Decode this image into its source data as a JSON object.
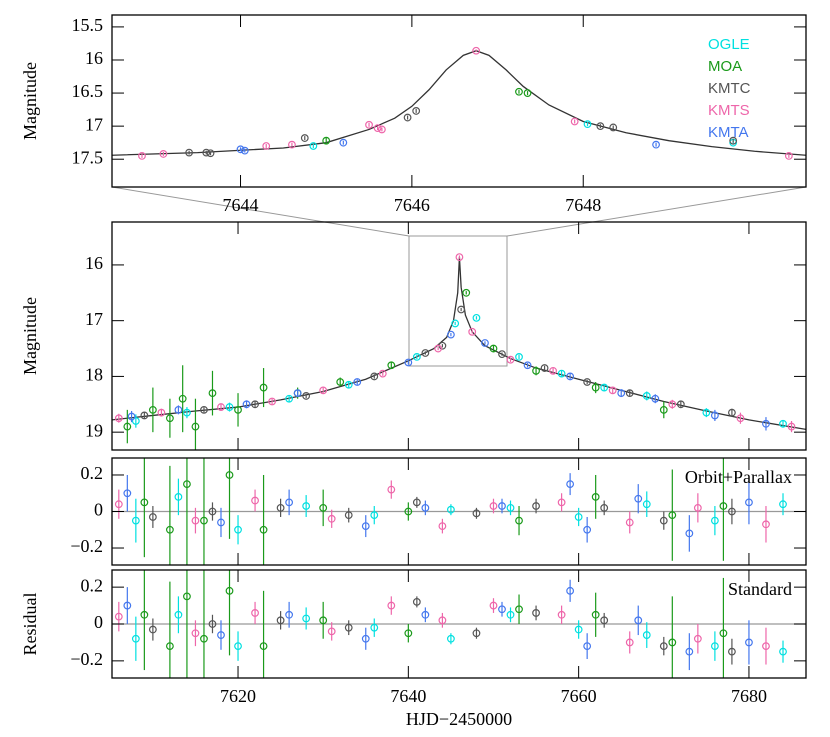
{
  "chart_data": [
    {
      "type": "scatter",
      "ylabel": "Magnitude",
      "xlim": [
        7642.5,
        7650.6
      ],
      "xticks": [
        7644,
        7646,
        7648
      ],
      "ylim": [
        17.92,
        15.32
      ],
      "yticks": [
        15.5,
        16,
        16.5,
        17,
        17.5
      ],
      "legend": "upper right",
      "model": {
        "color": "#333333",
        "x": [
          7642.5,
          7643.5,
          7644.5,
          7645,
          7645.5,
          7645.8,
          7646,
          7646.2,
          7646.4,
          7646.6,
          7646.75,
          7646.9,
          7647.1,
          7647.3,
          7647.6,
          7648,
          7648.5,
          7649,
          7649.5,
          7650,
          7650.6
        ],
        "values": [
          17.44,
          17.4,
          17.33,
          17.25,
          17.05,
          16.88,
          16.7,
          16.45,
          16.15,
          15.93,
          15.86,
          15.93,
          16.15,
          16.4,
          16.68,
          16.93,
          17.1,
          17.22,
          17.31,
          17.38,
          17.44
        ]
      },
      "series": [
        {
          "name": "OGLE",
          "color": "#00e0e0",
          "x": [
            7644.85,
            7648.05,
            7649.75
          ],
          "values": [
            17.3,
            16.97,
            17.25
          ],
          "errors": [
            0.03,
            0.03,
            0.03
          ]
        },
        {
          "name": "MOA",
          "color": "#1a9a1a",
          "x": [
            7645.0,
            7647.25,
            7647.35
          ],
          "values": [
            17.22,
            16.48,
            16.5
          ],
          "errors": [
            0.05,
            0.03,
            0.03
          ]
        },
        {
          "name": "KMTC",
          "color": "#555555",
          "x": [
            7643.4,
            7643.6,
            7643.65,
            7644.75,
            7645.95,
            7646.05,
            7648.2,
            7648.35,
            7649.75
          ],
          "values": [
            17.4,
            17.4,
            17.41,
            17.18,
            16.87,
            16.77,
            17.0,
            17.02,
            17.22
          ],
          "errors": [
            0.03,
            0.03,
            0.03,
            0.03,
            0.03,
            0.03,
            0.03,
            0.03,
            0.03
          ]
        },
        {
          "name": "KMTS",
          "color": "#ee66aa",
          "x": [
            7642.85,
            7643.1,
            7644.3,
            7644.6,
            7645.5,
            7645.6,
            7645.65,
            7646.75,
            7647.9,
            7650.4
          ],
          "values": [
            17.45,
            17.42,
            17.3,
            17.28,
            16.98,
            17.03,
            17.05,
            15.86,
            16.93,
            17.45
          ],
          "errors": [
            0.03,
            0.03,
            0.03,
            0.03,
            0.03,
            0.03,
            0.03,
            0.02,
            0.03,
            0.03
          ]
        },
        {
          "name": "KMTA",
          "color": "#4477ee",
          "x": [
            7644.0,
            7644.05,
            7645.2,
            7648.85
          ],
          "values": [
            17.35,
            17.37,
            17.25,
            17.28
          ],
          "errors": [
            0.03,
            0.03,
            0.03,
            0.03
          ]
        }
      ]
    },
    {
      "type": "scatter",
      "ylabel": "Magnitude",
      "xlim": [
        7605.2,
        7686.7
      ],
      "ylim": [
        19.32,
        15.23
      ],
      "yticks": [
        16,
        17,
        18,
        19
      ],
      "model": {
        "color": "#333333",
        "x": [
          7605.2,
          7610,
          7615,
          7620,
          7625,
          7630,
          7635,
          7640,
          7643,
          7644.5,
          7645.3,
          7645.8,
          7646,
          7646.2,
          7646.7,
          7647.5,
          7649,
          7652,
          7655,
          7660,
          7665,
          7670,
          7675,
          7680,
          7686.7
        ],
        "values": [
          18.78,
          18.7,
          18.62,
          18.55,
          18.42,
          18.27,
          18.05,
          17.72,
          17.5,
          17.3,
          17.0,
          16.5,
          15.86,
          16.4,
          16.9,
          17.2,
          17.45,
          17.68,
          17.85,
          18.05,
          18.25,
          18.45,
          18.62,
          18.78,
          18.95
        ]
      },
      "series": [
        {
          "color": "#1a9a1a",
          "x": [
            7607,
            7610,
            7612,
            7613.5,
            7615,
            7617,
            7620,
            7623,
            7627,
            7632,
            7638,
            7646.8,
            7650,
            7655,
            7662,
            7670
          ],
          "values": [
            18.9,
            18.6,
            18.75,
            18.4,
            18.9,
            18.3,
            18.6,
            18.2,
            18.3,
            18.1,
            17.8,
            16.5,
            17.5,
            17.9,
            18.2,
            18.6
          ],
          "errors": [
            0.3,
            0.4,
            0.35,
            0.6,
            0.5,
            0.4,
            0.3,
            0.35,
            0.1,
            0.08,
            0.06,
            0.03,
            0.06,
            0.08,
            0.1,
            0.15
          ]
        },
        {
          "color": "#00e0e0",
          "x": [
            7608,
            7614,
            7619,
            7626,
            7633,
            7641,
            7645.5,
            7648,
            7653,
            7658,
            7663,
            7668,
            7675,
            7684
          ],
          "values": [
            18.8,
            18.65,
            18.55,
            18.4,
            18.15,
            17.65,
            17.05,
            16.95,
            17.65,
            17.95,
            18.2,
            18.35,
            18.65,
            18.85
          ],
          "errors": [
            0.12,
            0.1,
            0.08,
            0.06,
            0.05,
            0.04,
            0.03,
            0.03,
            0.04,
            0.05,
            0.06,
            0.08,
            0.08,
            0.06
          ]
        },
        {
          "color": "#555555",
          "x": [
            7609,
            7616,
            7622,
            7628,
            7636,
            7642,
            7644,
            7646.2,
            7651,
            7656,
            7661,
            7666,
            7672,
            7678
          ],
          "values": [
            18.7,
            18.6,
            18.5,
            18.35,
            18.0,
            17.58,
            17.45,
            16.8,
            17.6,
            17.85,
            18.1,
            18.3,
            18.5,
            18.65
          ],
          "errors": [
            0.06,
            0.05,
            0.05,
            0.04,
            0.04,
            0.03,
            0.03,
            0.03,
            0.03,
            0.04,
            0.04,
            0.05,
            0.06,
            0.07
          ]
        },
        {
          "color": "#ee66aa",
          "x": [
            7606,
            7611,
            7618,
            7624,
            7630,
            7637,
            7643.5,
            7646,
            7647.5,
            7652,
            7657,
            7664,
            7671,
            7679,
            7685
          ],
          "values": [
            18.75,
            18.65,
            18.55,
            18.45,
            18.25,
            17.95,
            17.5,
            15.86,
            17.2,
            17.7,
            17.9,
            18.25,
            18.5,
            18.75,
            18.9
          ],
          "errors": [
            0.08,
            0.07,
            0.06,
            0.05,
            0.05,
            0.04,
            0.03,
            0.03,
            0.03,
            0.04,
            0.05,
            0.06,
            0.08,
            0.1,
            0.1
          ]
        },
        {
          "color": "#4477ee",
          "x": [
            7607.5,
            7613,
            7621,
            7627,
            7634,
            7640,
            7645,
            7649,
            7654,
            7659,
            7665,
            7669,
            7676,
            7682
          ],
          "values": [
            18.72,
            18.6,
            18.5,
            18.3,
            18.1,
            17.75,
            17.25,
            17.4,
            17.8,
            18.0,
            18.3,
            18.4,
            18.7,
            18.85
          ],
          "errors": [
            0.1,
            0.08,
            0.07,
            0.06,
            0.05,
            0.04,
            0.03,
            0.03,
            0.04,
            0.05,
            0.07,
            0.08,
            0.1,
            0.12
          ]
        }
      ]
    },
    {
      "type": "scatter",
      "annotation": "Orbit+Parallax",
      "xlim": [
        7605.2,
        7686.7
      ],
      "ylim": [
        -0.293,
        0.293
      ],
      "yticks": [
        {
          "value": -0.2,
          "label": "−0.2"
        },
        0,
        0.2
      ],
      "reference_line": 0,
      "series": [
        {
          "color": "#1a9a1a",
          "x": [
            7609,
            7612,
            7614,
            7616,
            7619,
            7623,
            7630,
            7640,
            7653,
            7662,
            7671,
            7677
          ],
          "values": [
            0.05,
            -0.1,
            0.15,
            -0.05,
            0.2,
            -0.1,
            0.02,
            0,
            -0.05,
            0.08,
            -0.02,
            0.03
          ],
          "errors": [
            0.3,
            0.35,
            0.5,
            0.4,
            0.35,
            0.3,
            0.1,
            0.05,
            0.08,
            0.12,
            0.25,
            0.3
          ]
        },
        {
          "color": "#00e0e0",
          "x": [
            7608,
            7613,
            7620,
            7628,
            7636,
            7645,
            7652,
            7660,
            7668,
            7676,
            7684
          ],
          "values": [
            -0.05,
            0.08,
            -0.1,
            0.03,
            -0.02,
            0.01,
            0.02,
            -0.03,
            0.04,
            -0.05,
            0.04
          ],
          "errors": [
            0.12,
            0.1,
            0.08,
            0.06,
            0.05,
            0.03,
            0.04,
            0.05,
            0.07,
            0.08,
            0.06
          ]
        },
        {
          "color": "#555555",
          "x": [
            7610,
            7617,
            7625,
            7633,
            7641,
            7648,
            7655,
            7663,
            7670,
            7678
          ],
          "values": [
            -0.03,
            0,
            0.02,
            -0.02,
            0.05,
            -0.01,
            0.03,
            0.02,
            -0.05,
            0
          ],
          "errors": [
            0.06,
            0.05,
            0.05,
            0.04,
            0.03,
            0.03,
            0.04,
            0.04,
            0.05,
            0.07
          ]
        },
        {
          "color": "#ee66aa",
          "x": [
            7606,
            7615,
            7622,
            7631,
            7638,
            7644,
            7650,
            7658,
            7666,
            7674,
            7682
          ],
          "values": [
            0.04,
            -0.05,
            0.06,
            -0.04,
            0.12,
            -0.08,
            0.03,
            0.05,
            -0.06,
            0.02,
            -0.07
          ],
          "errors": [
            0.08,
            0.07,
            0.06,
            0.05,
            0.05,
            0.04,
            0.04,
            0.05,
            0.06,
            0.08,
            0.1
          ]
        },
        {
          "color": "#4477ee",
          "x": [
            7607,
            7618,
            7626,
            7635,
            7642,
            7651,
            7659,
            7661,
            7667,
            7673,
            7680
          ],
          "values": [
            0.1,
            -0.06,
            0.05,
            -0.08,
            0.02,
            0.03,
            0.15,
            -0.1,
            0.07,
            -0.12,
            0.05
          ],
          "errors": [
            0.1,
            0.08,
            0.07,
            0.06,
            0.04,
            0.04,
            0.06,
            0.07,
            0.08,
            0.1,
            0.12
          ]
        }
      ]
    },
    {
      "type": "scatter",
      "annotation": "Standard",
      "ylabel": "Residual",
      "xlabel": "HJD−2450000",
      "xlim": [
        7605.2,
        7686.7
      ],
      "xticks": [
        7620,
        7640,
        7660,
        7680
      ],
      "ylim": [
        -0.293,
        0.293
      ],
      "yticks": [
        {
          "value": -0.2,
          "label": "−0.2"
        },
        0,
        0.2
      ],
      "reference_line": 0,
      "series": [
        {
          "color": "#1a9a1a",
          "x": [
            7609,
            7612,
            7614,
            7616,
            7619,
            7623,
            7630,
            7640,
            7653,
            7662,
            7671,
            7677
          ],
          "values": [
            0.05,
            -0.12,
            0.15,
            -0.08,
            0.18,
            -0.12,
            0.02,
            -0.05,
            0.08,
            0.05,
            -0.1,
            -0.05
          ],
          "errors": [
            0.3,
            0.35,
            0.5,
            0.4,
            0.35,
            0.3,
            0.1,
            0.05,
            0.08,
            0.12,
            0.25,
            0.3
          ]
        },
        {
          "color": "#00e0e0",
          "x": [
            7608,
            7613,
            7620,
            7628,
            7636,
            7645,
            7652,
            7660,
            7668,
            7676,
            7684
          ],
          "values": [
            -0.08,
            0.05,
            -0.12,
            0.03,
            -0.02,
            -0.08,
            0.05,
            -0.03,
            -0.06,
            -0.12,
            -0.15
          ],
          "errors": [
            0.12,
            0.1,
            0.08,
            0.06,
            0.05,
            0.03,
            0.04,
            0.05,
            0.07,
            0.08,
            0.06
          ]
        },
        {
          "color": "#555555",
          "x": [
            7610,
            7617,
            7625,
            7633,
            7641,
            7648,
            7655,
            7663,
            7670,
            7678
          ],
          "values": [
            -0.03,
            0,
            0.02,
            -0.02,
            0.12,
            -0.05,
            0.06,
            0.02,
            -0.12,
            -0.15
          ],
          "errors": [
            0.06,
            0.05,
            0.05,
            0.04,
            0.03,
            0.03,
            0.04,
            0.04,
            0.05,
            0.07
          ]
        },
        {
          "color": "#ee66aa",
          "x": [
            7606,
            7615,
            7622,
            7631,
            7638,
            7644,
            7650,
            7658,
            7666,
            7674,
            7682
          ],
          "values": [
            0.04,
            -0.05,
            0.06,
            -0.04,
            0.1,
            0.02,
            0.1,
            0.05,
            -0.1,
            -0.08,
            -0.12
          ],
          "errors": [
            0.08,
            0.07,
            0.06,
            0.05,
            0.05,
            0.04,
            0.04,
            0.05,
            0.06,
            0.08,
            0.1
          ]
        },
        {
          "color": "#4477ee",
          "x": [
            7607,
            7618,
            7626,
            7635,
            7642,
            7651,
            7659,
            7661,
            7667,
            7673,
            7680
          ],
          "values": [
            0.1,
            -0.06,
            0.05,
            -0.08,
            0.05,
            0.08,
            0.18,
            -0.12,
            0.02,
            -0.15,
            -0.1
          ],
          "errors": [
            0.1,
            0.08,
            0.07,
            0.06,
            0.04,
            0.04,
            0.06,
            0.07,
            0.08,
            0.1,
            0.12
          ]
        }
      ]
    }
  ]
}
